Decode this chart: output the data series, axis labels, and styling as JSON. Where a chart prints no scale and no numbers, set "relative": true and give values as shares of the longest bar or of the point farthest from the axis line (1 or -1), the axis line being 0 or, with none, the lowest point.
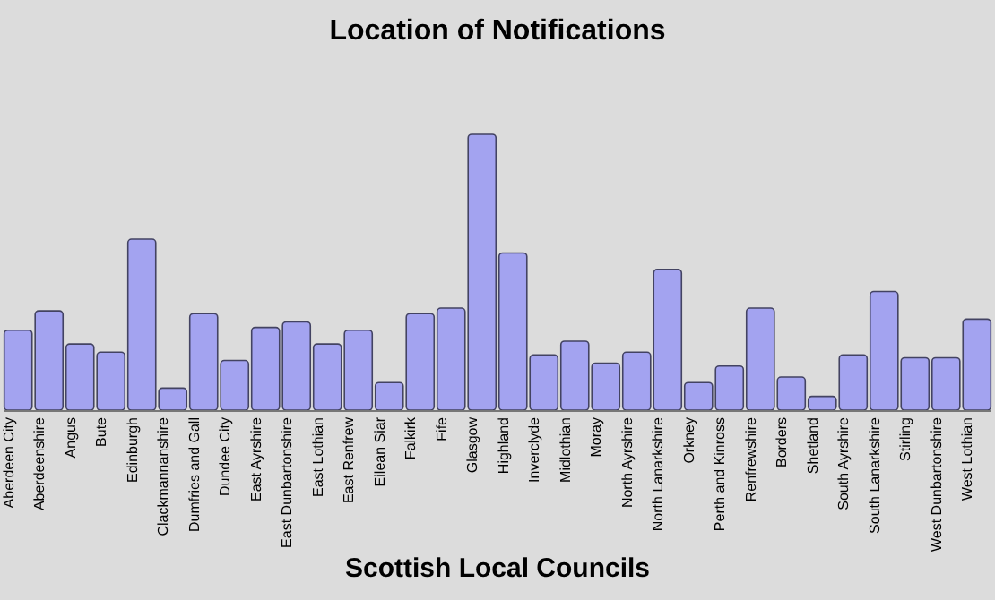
{
  "chart_data": {
    "type": "bar",
    "title": "Location of Notifications",
    "xlabel": "Scottish Local Councils",
    "relative": true,
    "categories": [
      "Aberdeen City",
      "Aberdeenshire",
      "Angus",
      "Bute",
      "Edinburgh",
      "Clackmannanshire",
      "Dumfries and Gall",
      "Dundee City",
      "East Ayrshire",
      "East Dunbartonshire",
      "East Lothian",
      "East Renfrew",
      "Eilean Siar",
      "Falkirk",
      "Fife",
      "Glasgow",
      "Highland",
      "Inverclyde",
      "Midlothian",
      "Moray",
      "North Ayrshire",
      "North Lanarkshire",
      "Orkney",
      "Perth and Kinross",
      "Renfrewshire",
      "Borders",
      "Shetland",
      "South Ayrshire",
      "South Lanarkshire",
      "Stirling",
      "West Dunbartonshire",
      "West Lothian"
    ],
    "values": [
      0.29,
      0.36,
      0.24,
      0.21,
      0.62,
      0.08,
      0.35,
      0.18,
      0.3,
      0.32,
      0.24,
      0.29,
      0.1,
      0.35,
      0.37,
      1,
      0.57,
      0.2,
      0.25,
      0.17,
      0.21,
      0.51,
      0.1,
      0.16,
      0.37,
      0.12,
      0.05,
      0.2,
      0.43,
      0.19,
      0.19,
      0.33
    ],
    "color": "#a3a3f0"
  }
}
